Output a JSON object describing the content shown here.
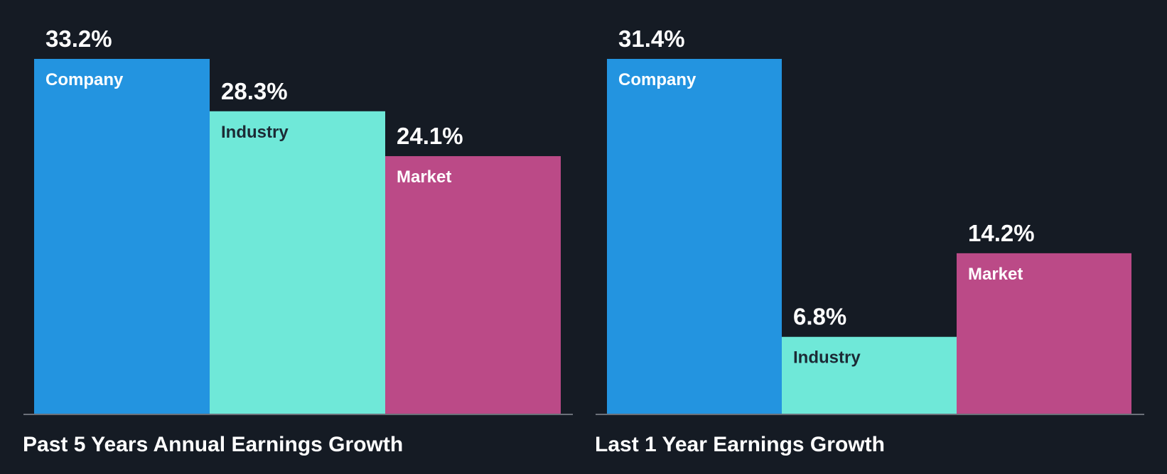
{
  "chart_data": [
    {
      "type": "bar",
      "title": "Past 5 Years Annual Earnings Growth",
      "categories": [
        "Company",
        "Industry",
        "Market"
      ],
      "values": [
        33.2,
        28.3,
        24.1
      ],
      "value_labels": [
        "33.2%",
        "28.3%",
        "24.1%"
      ],
      "unit": "%",
      "ylim": [
        0,
        33.2
      ],
      "grid": false,
      "legend": "none"
    },
    {
      "type": "bar",
      "title": "Last 1 Year Earnings Growth",
      "categories": [
        "Company",
        "Industry",
        "Market"
      ],
      "values": [
        31.4,
        6.8,
        14.2
      ],
      "value_labels": [
        "31.4%",
        "6.8%",
        "14.2%"
      ],
      "unit": "%",
      "ylim": [
        0,
        31.4
      ],
      "grid": false,
      "legend": "none"
    }
  ],
  "colors": {
    "background": "#151b24",
    "company": "#2394e0",
    "industry": "#6fe8d8",
    "market": "#bb4a87",
    "axis": "#6b7079",
    "label_dark": "#1c2a35",
    "label_light": "#ffffff"
  }
}
